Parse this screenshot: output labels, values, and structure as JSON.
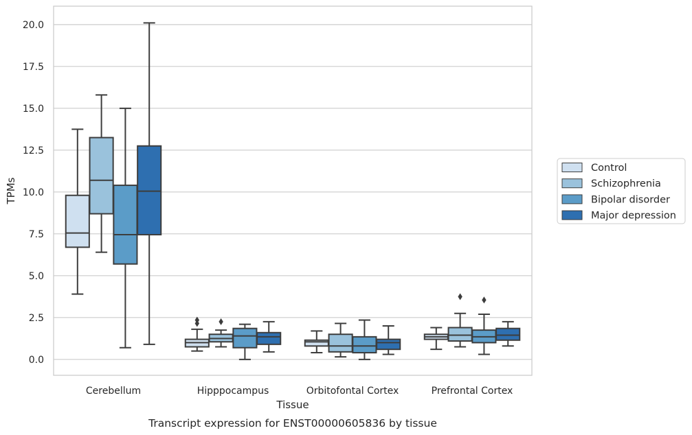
{
  "chart_data": {
    "type": "box",
    "caption": "Transcript expression for ENST00000605836 by tissue",
    "xlabel": "Tissue",
    "ylabel": "TPMs",
    "ylim": [
      -0.95,
      21.1
    ],
    "yticks": [
      "0.0",
      "2.5",
      "5.0",
      "7.5",
      "10.0",
      "12.5",
      "15.0",
      "17.5",
      "20.0"
    ],
    "grid": "horizontal",
    "legend_position": "right",
    "categories": [
      "Cerebellum",
      "Hipppocampus",
      "Orbitofontal Cortex",
      "Prefrontal Cortex"
    ],
    "series": [
      {
        "name": "Control",
        "color": "#cfe0f0",
        "boxes": [
          {
            "whislo": 3.9,
            "q1": 6.7,
            "med": 7.55,
            "q3": 9.8,
            "whishi": 13.75,
            "fliers": []
          },
          {
            "whislo": 0.5,
            "q1": 0.75,
            "med": 1.0,
            "q3": 1.2,
            "whishi": 1.8,
            "fliers": [
              2.15,
              2.35
            ]
          },
          {
            "whislo": 0.4,
            "q1": 0.8,
            "med": 1.05,
            "q3": 1.15,
            "whishi": 1.7,
            "fliers": []
          },
          {
            "whislo": 0.6,
            "q1": 1.2,
            "med": 1.35,
            "q3": 1.5,
            "whishi": 1.9,
            "fliers": []
          }
        ]
      },
      {
        "name": "Schizophrenia",
        "color": "#9ac2dc",
        "boxes": [
          {
            "whislo": 6.4,
            "q1": 8.7,
            "med": 10.7,
            "q3": 13.25,
            "whishi": 15.8,
            "fliers": []
          },
          {
            "whislo": 0.75,
            "q1": 1.05,
            "med": 1.25,
            "q3": 1.5,
            "whishi": 1.75,
            "fliers": [
              2.25
            ]
          },
          {
            "whislo": 0.15,
            "q1": 0.45,
            "med": 0.8,
            "q3": 1.5,
            "whishi": 2.15,
            "fliers": []
          },
          {
            "whislo": 0.75,
            "q1": 1.1,
            "med": 1.45,
            "q3": 1.9,
            "whishi": 2.75,
            "fliers": [
              3.75
            ]
          }
        ]
      },
      {
        "name": "Bipolar disorder",
        "color": "#5b9cc8",
        "boxes": [
          {
            "whislo": 0.7,
            "q1": 5.7,
            "med": 7.45,
            "q3": 10.4,
            "whishi": 15.0,
            "fliers": []
          },
          {
            "whislo": 0.0,
            "q1": 0.7,
            "med": 1.4,
            "q3": 1.85,
            "whishi": 2.1,
            "fliers": []
          },
          {
            "whislo": 0.0,
            "q1": 0.4,
            "med": 0.8,
            "q3": 1.35,
            "whishi": 2.35,
            "fliers": []
          },
          {
            "whislo": 0.3,
            "q1": 1.0,
            "med": 1.35,
            "q3": 1.75,
            "whishi": 2.7,
            "fliers": [
              3.55
            ]
          }
        ]
      },
      {
        "name": "Major depression",
        "color": "#2e6fb0",
        "boxes": [
          {
            "whislo": 0.9,
            "q1": 7.45,
            "med": 10.05,
            "q3": 12.75,
            "whishi": 20.1,
            "fliers": []
          },
          {
            "whislo": 0.45,
            "q1": 0.9,
            "med": 1.35,
            "q3": 1.6,
            "whishi": 2.25,
            "fliers": []
          },
          {
            "whislo": 0.3,
            "q1": 0.6,
            "med": 1.0,
            "q3": 1.2,
            "whishi": 2.0,
            "fliers": []
          },
          {
            "whislo": 0.8,
            "q1": 1.15,
            "med": 1.45,
            "q3": 1.85,
            "whishi": 2.25,
            "fliers": []
          }
        ]
      }
    ]
  }
}
